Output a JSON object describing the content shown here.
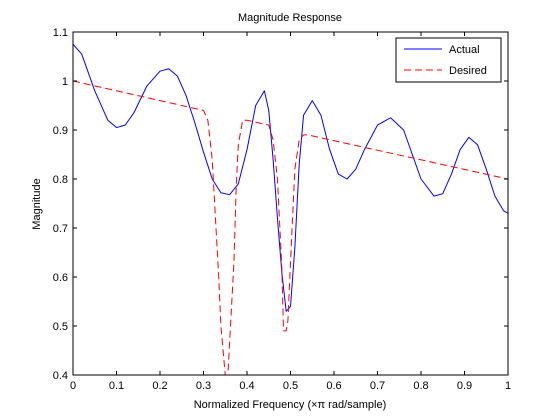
{
  "chart_data": {
    "type": "line",
    "title": "Magnitude Response",
    "xlabel": "Normalized Frequency (×π rad/sample)",
    "ylabel": "Magnitude",
    "xlim": [
      0,
      1
    ],
    "ylim": [
      0.4,
      1.1
    ],
    "xticks": [
      0,
      0.1,
      0.2,
      0.3,
      0.4,
      0.5,
      0.6,
      0.7,
      0.8,
      0.9,
      1
    ],
    "xtick_labels": [
      "0",
      "0.1",
      "0.2",
      "0.3",
      "0.4",
      "0.5",
      "0.6",
      "0.7",
      "0.8",
      "0.9",
      "1"
    ],
    "yticks": [
      0.4,
      0.5,
      0.6,
      0.7,
      0.8,
      0.9,
      1,
      1.1
    ],
    "ytick_labels": [
      "0.4",
      "0.5",
      "0.6",
      "0.7",
      "0.8",
      "0.9",
      "1",
      "1.1"
    ],
    "grid": false,
    "legend_position": "top-right",
    "series": [
      {
        "name": "Actual",
        "color": "#0000ff",
        "style": "solid",
        "x": [
          0.0,
          0.02,
          0.05,
          0.08,
          0.1,
          0.12,
          0.14,
          0.17,
          0.2,
          0.22,
          0.24,
          0.26,
          0.28,
          0.3,
          0.32,
          0.34,
          0.36,
          0.38,
          0.4,
          0.42,
          0.44,
          0.45,
          0.46,
          0.47,
          0.48,
          0.49,
          0.5,
          0.51,
          0.52,
          0.53,
          0.55,
          0.57,
          0.59,
          0.61,
          0.63,
          0.65,
          0.67,
          0.7,
          0.73,
          0.76,
          0.78,
          0.8,
          0.83,
          0.85,
          0.87,
          0.89,
          0.91,
          0.93,
          0.95,
          0.97,
          0.99,
          1.0
        ],
        "y": [
          1.075,
          1.055,
          0.98,
          0.92,
          0.905,
          0.91,
          0.935,
          0.99,
          1.02,
          1.025,
          1.01,
          0.97,
          0.915,
          0.855,
          0.8,
          0.772,
          0.768,
          0.79,
          0.86,
          0.95,
          0.98,
          0.94,
          0.84,
          0.72,
          0.61,
          0.53,
          0.54,
          0.66,
          0.83,
          0.93,
          0.96,
          0.93,
          0.86,
          0.81,
          0.8,
          0.82,
          0.86,
          0.91,
          0.925,
          0.9,
          0.85,
          0.8,
          0.765,
          0.77,
          0.81,
          0.86,
          0.885,
          0.87,
          0.82,
          0.765,
          0.735,
          0.73
        ]
      },
      {
        "name": "Desired",
        "color": "#ff0000",
        "style": "dashed",
        "x": [
          0.0,
          0.3,
          0.31,
          0.32,
          0.335,
          0.34,
          0.35,
          0.356,
          0.37,
          0.375,
          0.38,
          0.39,
          0.4,
          0.45,
          0.46,
          0.47,
          0.48,
          0.484,
          0.49,
          0.494,
          0.5,
          0.51,
          0.52,
          0.53,
          0.54,
          1.0
        ],
        "y": [
          1.0,
          0.94,
          0.92,
          0.84,
          0.6,
          0.5,
          0.4,
          0.4,
          0.63,
          0.78,
          0.87,
          0.92,
          0.92,
          0.91,
          0.88,
          0.8,
          0.62,
          0.49,
          0.49,
          0.51,
          0.63,
          0.82,
          0.88,
          0.89,
          0.89,
          0.8
        ]
      }
    ]
  }
}
